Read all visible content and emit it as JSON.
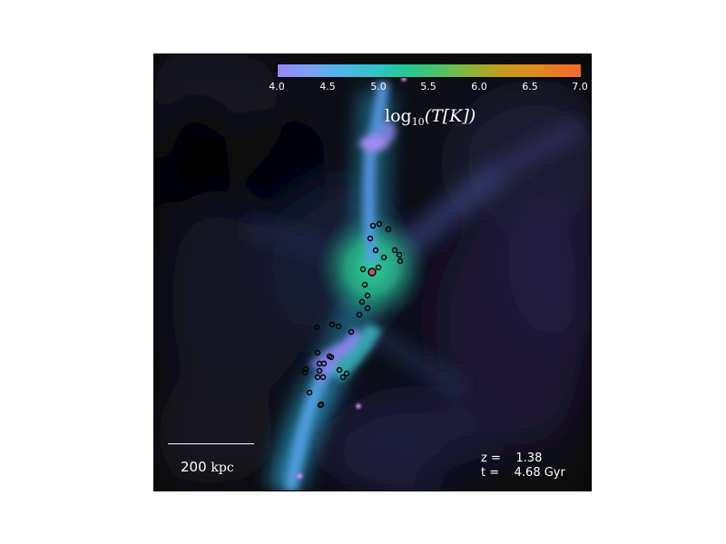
{
  "figure": {
    "colorbar": {
      "ticks": [
        "4.0",
        "4.5",
        "5.0",
        "5.5",
        "6.0",
        "6.5",
        "7.0"
      ],
      "label_prefix": "log",
      "label_sub": "10",
      "label_body": "(T[K])",
      "colormap": [
        "#9a86f7",
        "#4cb8e6",
        "#26c891",
        "#8ab43a",
        "#e0891e",
        "#f46a2f"
      ]
    },
    "scale_bar": {
      "value": "200",
      "unit": "kpc"
    },
    "info": {
      "z_label": "z =",
      "z_value": "1.38",
      "t_label": "t =",
      "t_value": "4.68 Gyr"
    },
    "colors": {
      "background": "#000000",
      "filament_cool": "#9a86f7",
      "filament_warm": "#4cb8e6",
      "halo_hot": "#26c891",
      "marker_edge": "#000000",
      "central_marker": "#c0506a"
    }
  }
}
